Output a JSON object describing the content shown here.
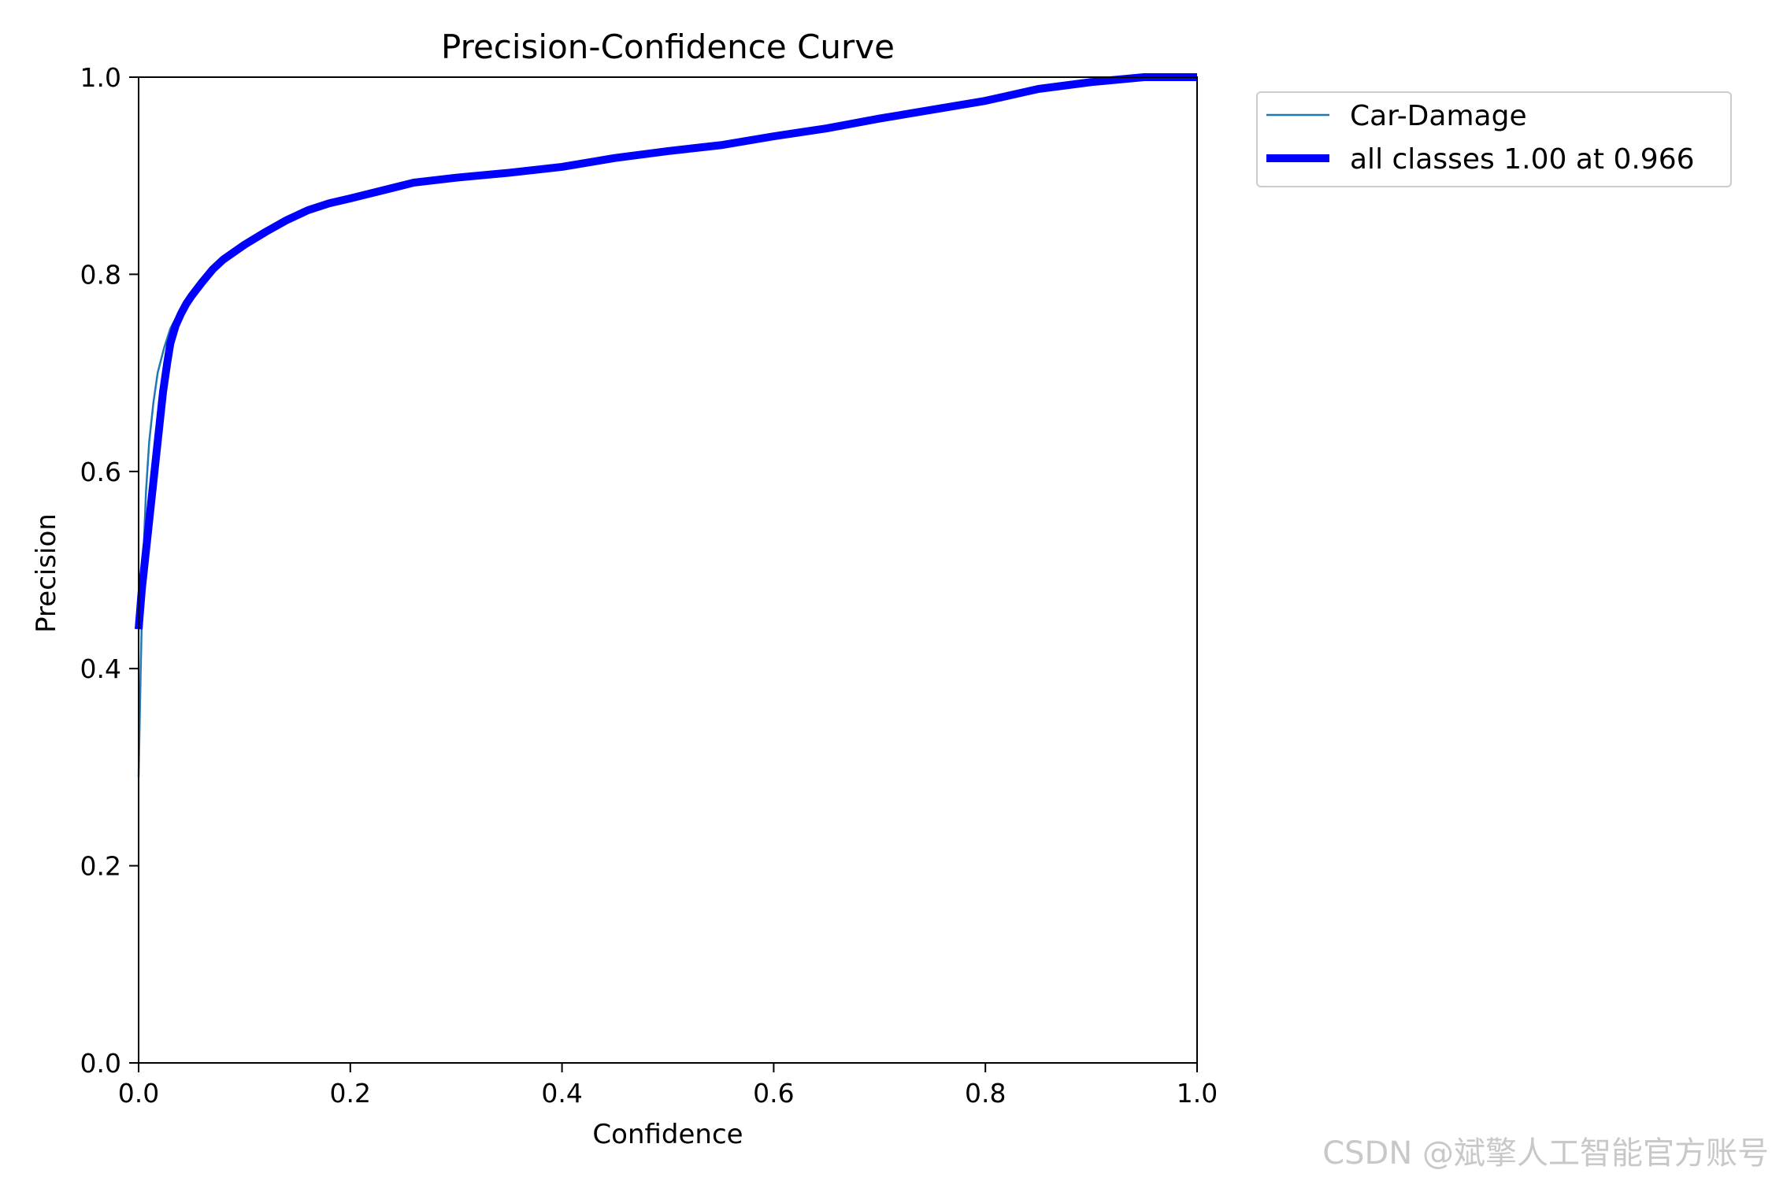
{
  "chart_data": {
    "type": "line",
    "title": "Precision-Confidence Curve",
    "xlabel": "Confidence",
    "ylabel": "Precision",
    "xlim": [
      0.0,
      1.0
    ],
    "ylim": [
      0.0,
      1.0
    ],
    "xticks": [
      "0.0",
      "0.2",
      "0.4",
      "0.6",
      "0.8",
      "1.0"
    ],
    "yticks": [
      "0.0",
      "0.2",
      "0.4",
      "0.6",
      "0.8",
      "1.0"
    ],
    "grid": false,
    "legend_position": "outside-upper-right",
    "series": [
      {
        "name": "Car-Damage",
        "color": "#1f77b4",
        "x": [
          0.0,
          0.002,
          0.004,
          0.007,
          0.01,
          0.014,
          0.018,
          0.024,
          0.03,
          0.035,
          0.04,
          0.045,
          0.05,
          0.06,
          0.07,
          0.08,
          0.1,
          0.12,
          0.14,
          0.16,
          0.18,
          0.2,
          0.23,
          0.26,
          0.3,
          0.35,
          0.4,
          0.45,
          0.5,
          0.55,
          0.6,
          0.65,
          0.7,
          0.75,
          0.8,
          0.85,
          0.9,
          0.93,
          0.95,
          0.97,
          1.0
        ],
        "y": [
          0.29,
          0.4,
          0.5,
          0.58,
          0.63,
          0.67,
          0.7,
          0.725,
          0.745,
          0.755,
          0.765,
          0.772,
          0.78,
          0.795,
          0.807,
          0.815,
          0.83,
          0.843,
          0.855,
          0.865,
          0.872,
          0.877,
          0.885,
          0.893,
          0.898,
          0.903,
          0.909,
          0.918,
          0.925,
          0.931,
          0.94,
          0.948,
          0.958,
          0.967,
          0.976,
          0.988,
          0.995,
          0.998,
          1.0,
          1.0,
          1.0
        ]
      },
      {
        "name": "all classes 1.00 at 0.966",
        "color": "#0000ff",
        "x": [
          0.0,
          0.003,
          0.008,
          0.013,
          0.018,
          0.023,
          0.027,
          0.03,
          0.035,
          0.04,
          0.045,
          0.05,
          0.06,
          0.07,
          0.08,
          0.1,
          0.12,
          0.14,
          0.16,
          0.18,
          0.2,
          0.23,
          0.26,
          0.3,
          0.35,
          0.4,
          0.45,
          0.5,
          0.55,
          0.6,
          0.65,
          0.7,
          0.75,
          0.8,
          0.85,
          0.9,
          0.93,
          0.95,
          0.97,
          1.0
        ],
        "y": [
          0.44,
          0.48,
          0.53,
          0.58,
          0.63,
          0.68,
          0.71,
          0.73,
          0.748,
          0.76,
          0.77,
          0.778,
          0.792,
          0.805,
          0.815,
          0.83,
          0.843,
          0.855,
          0.865,
          0.872,
          0.877,
          0.885,
          0.893,
          0.898,
          0.903,
          0.909,
          0.918,
          0.925,
          0.931,
          0.94,
          0.948,
          0.958,
          0.967,
          0.976,
          0.988,
          0.995,
          0.998,
          1.0,
          1.0,
          1.0
        ]
      }
    ]
  },
  "watermark": "CSDN @斌擎人工智能官方账号"
}
